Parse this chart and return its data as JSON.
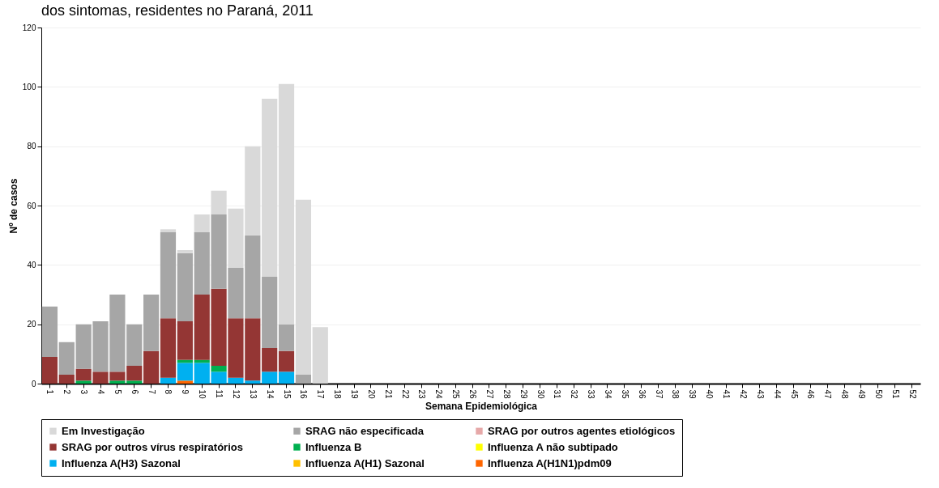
{
  "chart_data": {
    "type": "bar",
    "stacked": true,
    "title": "dos sintomas, residentes no Paraná, 2011",
    "xlabel": "Semana Epidemiológica",
    "ylabel": "Nº de casos",
    "categories": [
      "1",
      "2",
      "3",
      "4",
      "5",
      "6",
      "7",
      "8",
      "9",
      "10",
      "11",
      "12",
      "13",
      "14",
      "15",
      "16",
      "17",
      "18",
      "19",
      "20",
      "21",
      "22",
      "23",
      "24",
      "25",
      "26",
      "27",
      "28",
      "29",
      "30",
      "31",
      "32",
      "33",
      "34",
      "35",
      "36",
      "37",
      "38",
      "39",
      "40",
      "41",
      "42",
      "43",
      "44",
      "45",
      "46",
      "47",
      "48",
      "49",
      "50",
      "51",
      "52"
    ],
    "ylim": [
      0,
      120
    ],
    "yticks": [
      0,
      20,
      40,
      60,
      80,
      100,
      120
    ],
    "grid": "y",
    "legend": "bottom",
    "series": [
      {
        "name": "Influenza A(H1N1)pdm09",
        "color": "#ff6600",
        "values": [
          0,
          0,
          0,
          0,
          0,
          0,
          0,
          0,
          1,
          0,
          0,
          0,
          0,
          0,
          0,
          0,
          0,
          0,
          0,
          0,
          0,
          0,
          0,
          0,
          0,
          0,
          0,
          0,
          0,
          0,
          0,
          0,
          0,
          0,
          0,
          0,
          0,
          0,
          0,
          0,
          0,
          0,
          0,
          0,
          0,
          0,
          0,
          0,
          0,
          0,
          0,
          0
        ]
      },
      {
        "name": "Influenza A(H1) Sazonal",
        "color": "#ffc000",
        "values": [
          0,
          0,
          0,
          0,
          0,
          0,
          0,
          0,
          0,
          0,
          0,
          0,
          0,
          0,
          0,
          0,
          0,
          0,
          0,
          0,
          0,
          0,
          0,
          0,
          0,
          0,
          0,
          0,
          0,
          0,
          0,
          0,
          0,
          0,
          0,
          0,
          0,
          0,
          0,
          0,
          0,
          0,
          0,
          0,
          0,
          0,
          0,
          0,
          0,
          0,
          0,
          0
        ]
      },
      {
        "name": "Influenza A(H3) Sazonal",
        "color": "#00b0f0",
        "values": [
          0,
          0,
          0,
          0,
          0,
          0,
          0,
          2,
          6,
          7,
          4,
          2,
          1,
          4,
          4,
          0,
          0,
          0,
          0,
          0,
          0,
          0,
          0,
          0,
          0,
          0,
          0,
          0,
          0,
          0,
          0,
          0,
          0,
          0,
          0,
          0,
          0,
          0,
          0,
          0,
          0,
          0,
          0,
          0,
          0,
          0,
          0,
          0,
          0,
          0,
          0,
          0
        ]
      },
      {
        "name": "Influenza A não subtipado",
        "color": "#ffff00",
        "values": [
          0,
          0,
          0,
          0,
          0,
          0,
          0,
          0,
          0,
          0,
          0,
          0,
          0,
          0,
          0,
          0,
          0,
          0,
          0,
          0,
          0,
          0,
          0,
          0,
          0,
          0,
          0,
          0,
          0,
          0,
          0,
          0,
          0,
          0,
          0,
          0,
          0,
          0,
          0,
          0,
          0,
          0,
          0,
          0,
          0,
          0,
          0,
          0,
          0,
          0,
          0,
          0
        ]
      },
      {
        "name": "Influenza B",
        "color": "#00b050",
        "values": [
          0,
          0,
          1,
          0,
          1,
          1,
          0,
          0,
          1,
          1,
          2,
          0,
          0,
          0,
          0,
          0,
          0,
          0,
          0,
          0,
          0,
          0,
          0,
          0,
          0,
          0,
          0,
          0,
          0,
          0,
          0,
          0,
          0,
          0,
          0,
          0,
          0,
          0,
          0,
          0,
          0,
          0,
          0,
          0,
          0,
          0,
          0,
          0,
          0,
          0,
          0,
          0
        ]
      },
      {
        "name": "SRAG por outros vírus respiratórios",
        "color": "#943634",
        "values": [
          9,
          3,
          4,
          4,
          3,
          5,
          11,
          20,
          13,
          22,
          26,
          20,
          21,
          8,
          7,
          0,
          0,
          0,
          0,
          0,
          0,
          0,
          0,
          0,
          0,
          0,
          0,
          0,
          0,
          0,
          0,
          0,
          0,
          0,
          0,
          0,
          0,
          0,
          0,
          0,
          0,
          0,
          0,
          0,
          0,
          0,
          0,
          0,
          0,
          0,
          0,
          0
        ]
      },
      {
        "name": "SRAG por outros agentes etiológicos",
        "color": "#e6a8a8",
        "values": [
          0,
          0,
          0,
          0,
          0,
          0,
          0,
          0,
          0,
          0,
          0,
          0,
          0,
          0,
          0,
          0,
          0,
          0,
          0,
          0,
          0,
          0,
          0,
          0,
          0,
          0,
          0,
          0,
          0,
          0,
          0,
          0,
          0,
          0,
          0,
          0,
          0,
          0,
          0,
          0,
          0,
          0,
          0,
          0,
          0,
          0,
          0,
          0,
          0,
          0,
          0,
          0
        ]
      },
      {
        "name": "SRAG não especificada",
        "color": "#a6a6a6",
        "values": [
          17,
          11,
          15,
          17,
          26,
          14,
          19,
          29,
          23,
          21,
          25,
          17,
          28,
          24,
          9,
          3,
          0,
          0,
          0,
          0,
          0,
          0,
          0,
          0,
          0,
          0,
          0,
          0,
          0,
          0,
          0,
          0,
          0,
          0,
          0,
          0,
          0,
          0,
          0,
          0,
          0,
          0,
          0,
          0,
          0,
          0,
          0,
          0,
          0,
          0,
          0,
          0
        ]
      },
      {
        "name": "Em Investigação",
        "color": "#d9d9d9",
        "values": [
          0,
          0,
          0,
          0,
          0,
          0,
          0,
          1,
          1,
          6,
          8,
          20,
          30,
          60,
          81,
          59,
          19,
          0,
          0,
          0,
          0,
          0,
          0,
          0,
          0,
          0,
          0,
          0,
          0,
          0,
          0,
          0,
          0,
          0,
          0,
          0,
          0,
          0,
          0,
          0,
          0,
          0,
          0,
          0,
          0,
          0,
          0,
          0,
          0,
          0,
          0,
          0
        ]
      }
    ]
  }
}
